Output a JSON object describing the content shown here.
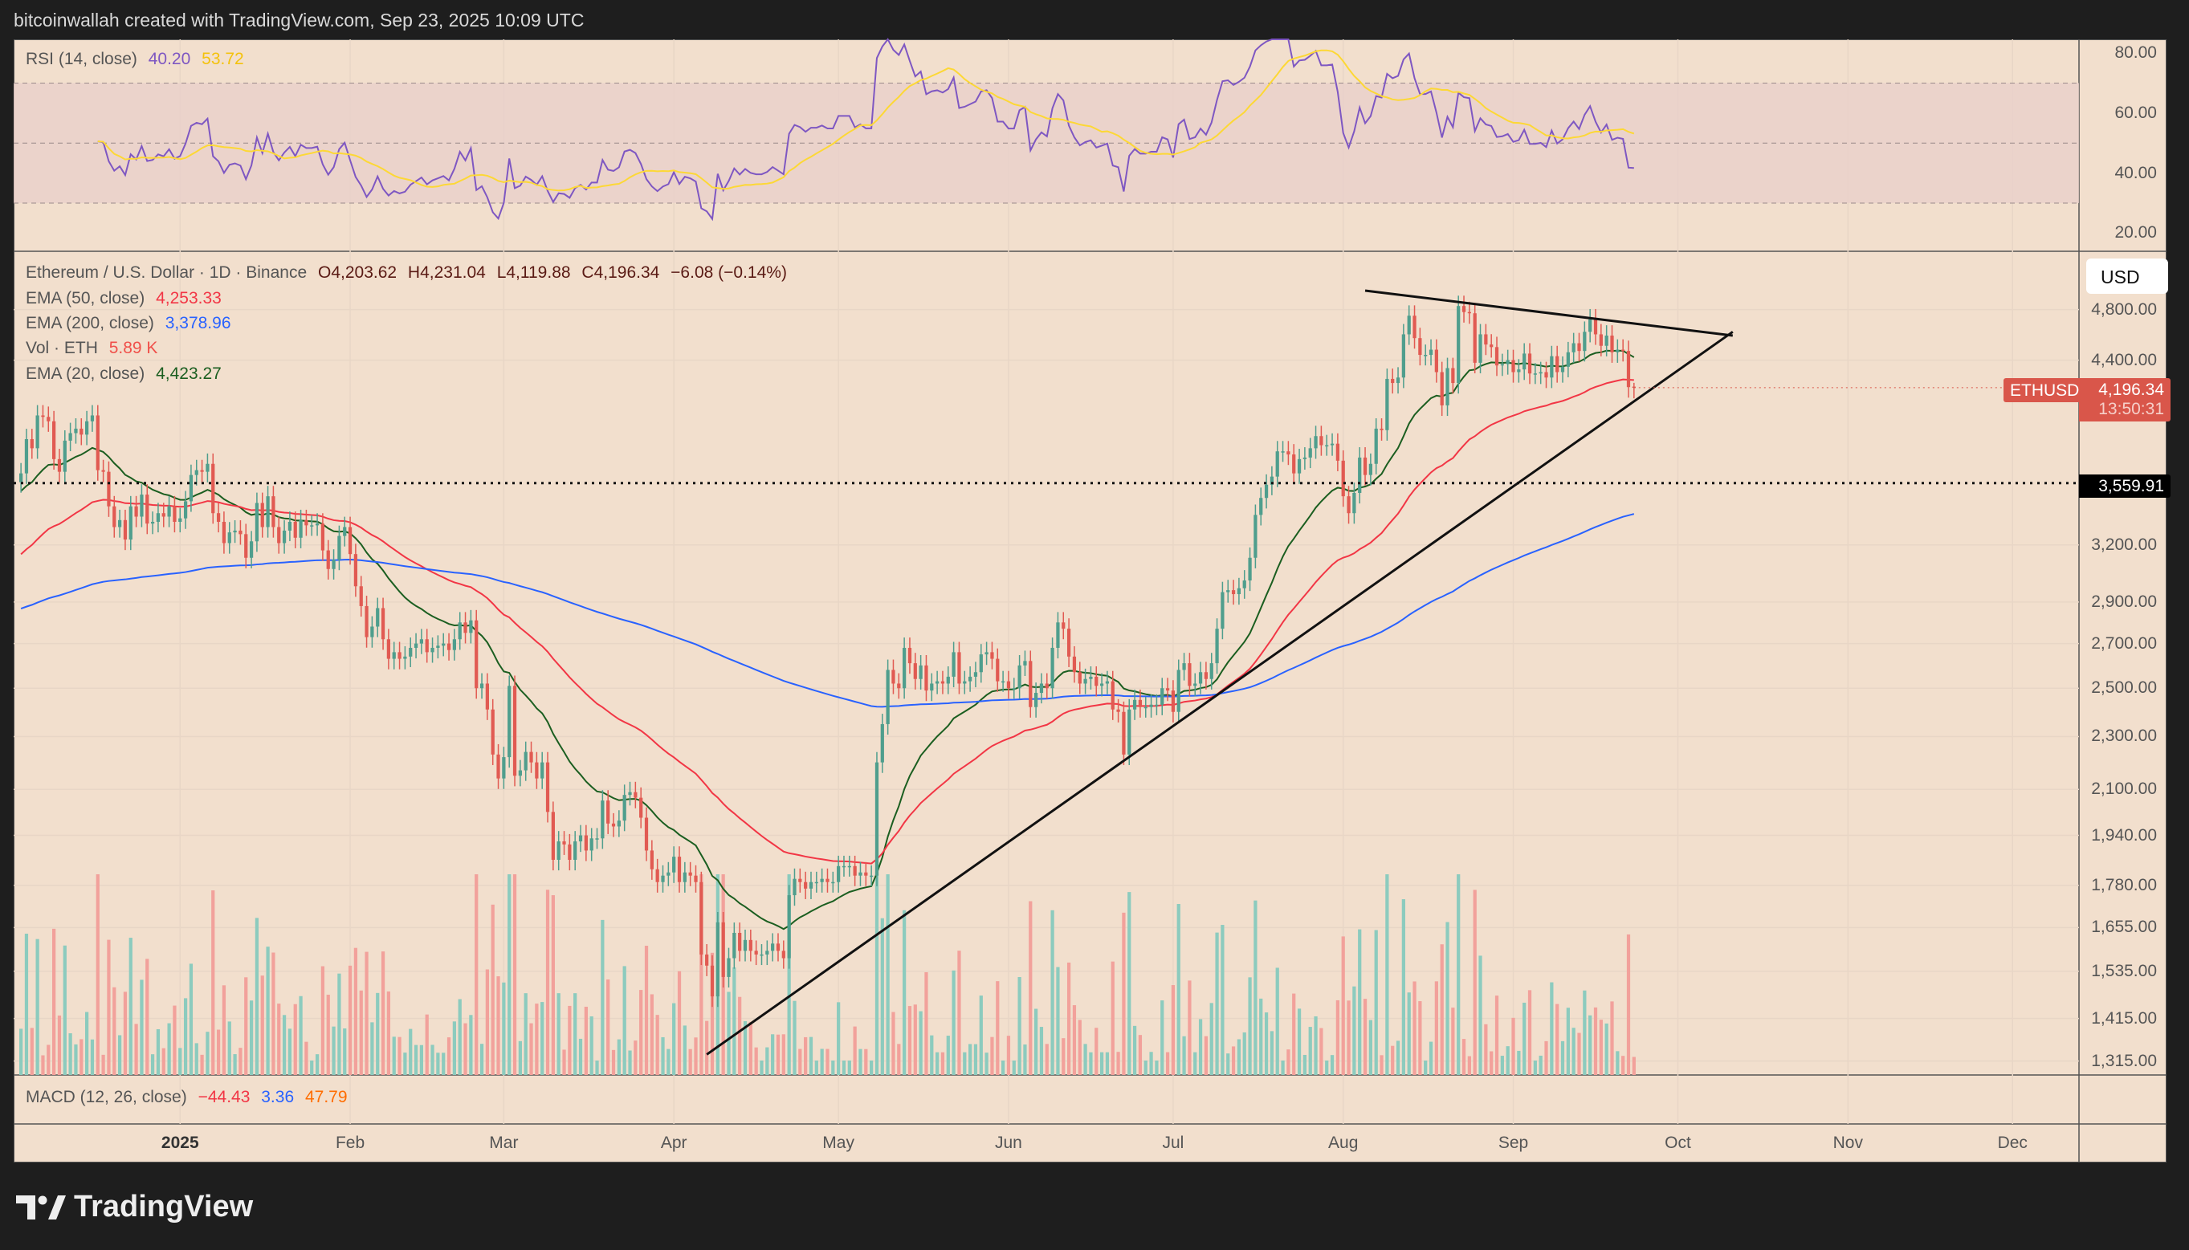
{
  "header": {
    "attribution": "bitcoinwallah created with TradingView.com, Sep 23, 2025 10:09 UTC"
  },
  "rsi": {
    "label": "RSI (14, close)",
    "value": "40.20",
    "ma_value": "53.72",
    "axis": [
      "80.00",
      "60.00",
      "40.00",
      "20.00"
    ],
    "axis_values": [
      80,
      60,
      40,
      20
    ],
    "bands": [
      70,
      50,
      30
    ],
    "colors": {
      "line": "#7e57c2",
      "ma": "#fdd835"
    }
  },
  "price_legend": {
    "symbol": "Ethereum / U.S. Dollar · 1D · Binance",
    "open": "O4,203.62",
    "high": "H4,231.04",
    "low": "L4,119.88",
    "close": "C4,196.34",
    "change": "−6.08 (−0.14%)",
    "ema50_label": "EMA (50, close)",
    "ema50_value": "4,253.33",
    "ema200_label": "EMA (200, close)",
    "ema200_value": "3,378.96",
    "vol_label": "Vol · ETH",
    "vol_value": "5.89 K",
    "ema20_label": "EMA (20, close)",
    "ema20_value": "4,423.27"
  },
  "macd": {
    "label": "MACD (12, 26, close)",
    "v1": "−44.43",
    "v2": "3.36",
    "v3": "47.79"
  },
  "price_axis": {
    "currency_button": "USD",
    "scale": "log",
    "labels": [
      "4,800.00",
      "4,400.00",
      "3,200.00",
      "2,900.00",
      "2,700.00",
      "2,500.00",
      "2,300.00",
      "2,100.00",
      "1,940.00",
      "1,780.00",
      "1,655.00",
      "1,535.00",
      "1,415.00",
      "1,315.00"
    ],
    "values": [
      4800,
      4400,
      3200,
      2900,
      2700,
      2500,
      2300,
      2100,
      1940,
      1780,
      1655,
      1535,
      1415,
      1315
    ]
  },
  "last_price": {
    "symbol": "ETHUSD",
    "price": "4,196.34",
    "countdown": "13:50:31",
    "color": "#d9564a"
  },
  "horizontal_line": {
    "label": "3,559.91",
    "value": 3559.91
  },
  "time_axis": {
    "labels": [
      "2025",
      "Feb",
      "Mar",
      "Apr",
      "May",
      "Jun",
      "Jul",
      "Aug",
      "Sep",
      "Oct",
      "Nov",
      "Dec"
    ],
    "dates": [
      "2025-01-01",
      "2025-02-01",
      "2025-03-01",
      "2025-04-01",
      "2025-05-01",
      "2025-06-01",
      "2025-07-01",
      "2025-08-01",
      "2025-09-01",
      "2025-10-01",
      "2025-11-01",
      "2025-12-01"
    ]
  },
  "footer": {
    "brand": "TradingView"
  },
  "chart_data": {
    "type": "candlestick",
    "title": "Ethereum / U.S. Dollar · 1D · Binance",
    "start_date": "2024-12-03",
    "last_candle": {
      "open": 4203.62,
      "high": 4231.04,
      "low": 4119.88,
      "close": 4196.34
    },
    "closes": [
      3620,
      3840,
      3780,
      4000,
      3990,
      3960,
      3710,
      3630,
      3830,
      3880,
      3910,
      3870,
      3960,
      4000,
      3640,
      3630,
      3420,
      3300,
      3340,
      3230,
      3420,
      3360,
      3490,
      3320,
      3330,
      3380,
      3360,
      3420,
      3330,
      3350,
      3450,
      3610,
      3640,
      3630,
      3680,
      3380,
      3330,
      3210,
      3270,
      3280,
      3260,
      3130,
      3220,
      3440,
      3300,
      3480,
      3300,
      3210,
      3280,
      3330,
      3240,
      3340,
      3310,
      3310,
      3320,
      3170,
      3070,
      3120,
      3250,
      3300,
      3150,
      2980,
      2880,
      2730,
      2780,
      2870,
      2720,
      2630,
      2660,
      2630,
      2640,
      2680,
      2700,
      2720,
      2660,
      2680,
      2690,
      2700,
      2670,
      2720,
      2800,
      2750,
      2810,
      2500,
      2520,
      2410,
      2230,
      2140,
      2220,
      2510,
      2150,
      2170,
      2240,
      2200,
      2140,
      2200,
      2020,
      1860,
      1920,
      1910,
      1860,
      1920,
      1940,
      1890,
      1930,
      1930,
      2060,
      1980,
      1970,
      1990,
      2080,
      2090,
      2070,
      2000,
      1890,
      1830,
      1790,
      1810,
      1820,
      1870,
      1790,
      1820,
      1810,
      1790,
      1580,
      1550,
      1470,
      1670,
      1520,
      1570,
      1640,
      1590,
      1620,
      1590,
      1580,
      1580,
      1590,
      1610,
      1590,
      1570,
      1750,
      1800,
      1790,
      1770,
      1790,
      1790,
      1800,
      1790,
      1790,
      1840,
      1840,
      1840,
      1810,
      1820,
      1810,
      1810,
      2200,
      2350,
      2580,
      2520,
      2500,
      2680,
      2610,
      2540,
      2600,
      2490,
      2520,
      2530,
      2520,
      2550,
      2660,
      2520,
      2530,
      2550,
      2570,
      2650,
      2660,
      2630,
      2530,
      2530,
      2500,
      2500,
      2600,
      2620,
      2420,
      2480,
      2520,
      2500,
      2680,
      2800,
      2770,
      2640,
      2570,
      2520,
      2540,
      2550,
      2510,
      2520,
      2530,
      2410,
      2400,
      2230,
      2410,
      2450,
      2420,
      2420,
      2430,
      2430,
      2500,
      2490,
      2400,
      2580,
      2610,
      2510,
      2520,
      2570,
      2540,
      2610,
      2770,
      2950,
      2960,
      2940,
      2970,
      3010,
      3130,
      3370,
      3470,
      3550,
      3600,
      3760,
      3760,
      3740,
      3620,
      3710,
      3720,
      3780,
      3860,
      3800,
      3800,
      3810,
      3700,
      3480,
      3380,
      3500,
      3720,
      3610,
      3680,
      3910,
      3900,
      4260,
      4230,
      4270,
      4600,
      4750,
      4570,
      4440,
      4440,
      4480,
      4310,
      4070,
      4340,
      4230,
      4830,
      4780,
      4770,
      4380,
      4600,
      4520,
      4500,
      4360,
      4370,
      4400,
      4310,
      4330,
      4450,
      4300,
      4300,
      4310,
      4270,
      4430,
      4310,
      4350,
      4460,
      4530,
      4470,
      4620,
      4720,
      4600,
      4510,
      4590,
      4460,
      4480,
      4470,
      4200,
      4196.34
    ],
    "indicators": [
      {
        "name": "EMA (20, close)",
        "color": "#1b5e20"
      },
      {
        "name": "EMA (50, close)",
        "color": "#f23645"
      },
      {
        "name": "EMA (200, close)",
        "color": "#2962ff"
      }
    ],
    "trendlines": [
      {
        "kind": "ascending support",
        "from": {
          "date": "2025-04-07",
          "price": 1330
        },
        "to": {
          "date": "2025-10-11",
          "price": 4620
        }
      },
      {
        "kind": "descending resistance",
        "from": {
          "date": "2025-08-05",
          "price": 4960
        },
        "to": {
          "date": "2025-10-11",
          "price": 4590
        }
      }
    ],
    "colors": {
      "up": "#4f9e8d",
      "down": "#e15a52",
      "vol_up": "#8ccbbe",
      "vol_down": "#f2a19b",
      "background": "#f2dfcd"
    },
    "grid": true,
    "legend": "top-left"
  }
}
